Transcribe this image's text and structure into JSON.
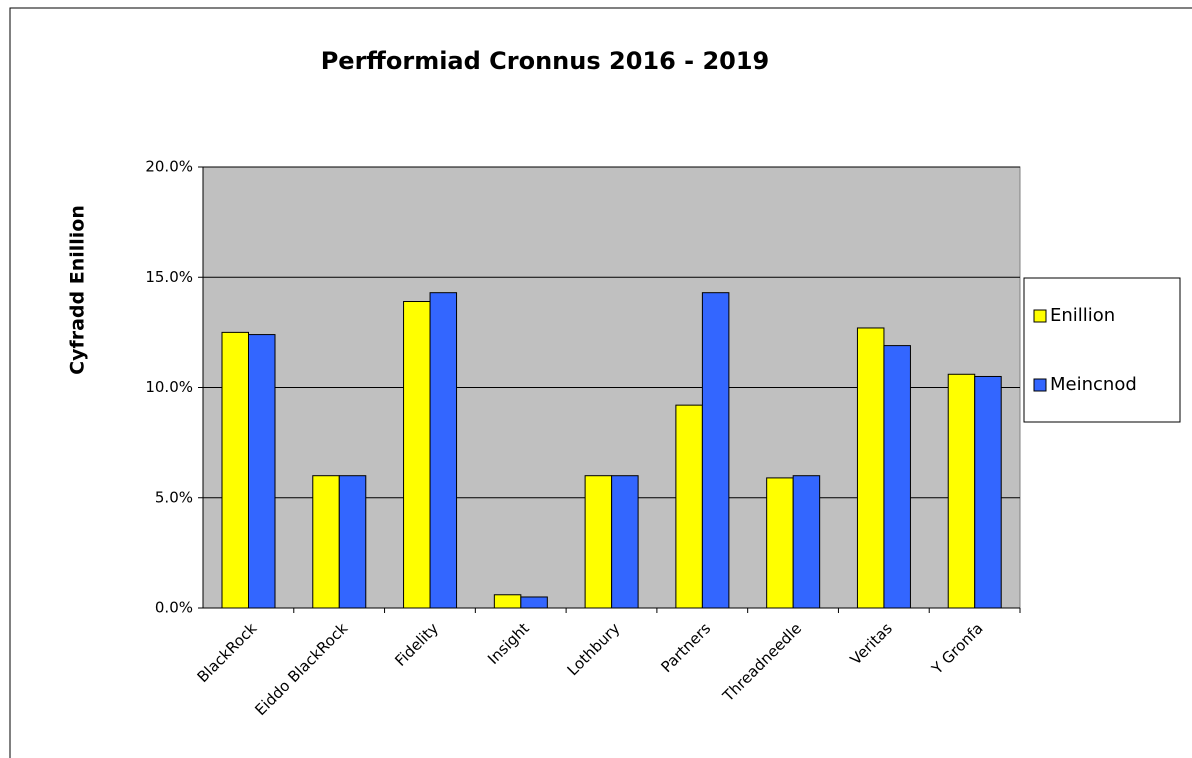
{
  "chart_data": {
    "type": "bar",
    "title": "Perfformiad Cronnus 2016 - 2019",
    "y_label": "Cyfradd Enillion",
    "categories": [
      "BlackRock",
      "Eiddo BlackRock",
      "Fidelity",
      "Insight",
      "Lothbury",
      "Partners",
      "Threadneedle",
      "Veritas",
      "Y Gronfa"
    ],
    "series": [
      {
        "name": "Enillion",
        "color": "#ffff00",
        "values": [
          12.5,
          6.0,
          13.9,
          0.6,
          6.0,
          9.2,
          5.9,
          12.7,
          10.6
        ]
      },
      {
        "name": "Meincnod",
        "color": "#3366ff",
        "values": [
          12.4,
          6.0,
          14.3,
          0.5,
          6.0,
          14.3,
          6.0,
          11.9,
          10.5
        ]
      }
    ],
    "ylim": [
      0,
      20
    ],
    "yticks": [
      {
        "value": 0,
        "label": "0.0%"
      },
      {
        "value": 5,
        "label": "5.0%"
      },
      {
        "value": 10,
        "label": "10.0%"
      },
      {
        "value": 15,
        "label": "15.0%"
      },
      {
        "value": 20,
        "label": "20.0%"
      }
    ],
    "grid": true,
    "legend": "right"
  }
}
